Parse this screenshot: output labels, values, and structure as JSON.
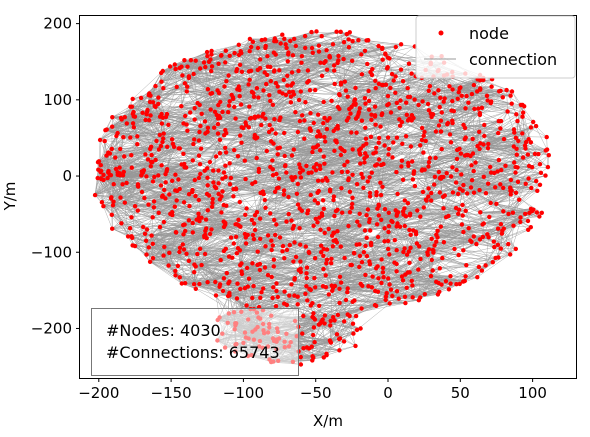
{
  "chart_data": {
    "type": "scatter",
    "title": "",
    "xlabel": "X/m",
    "ylabel": "Y/m",
    "xlim": [
      -213,
      130
    ],
    "ylim": [
      -265,
      210
    ],
    "xticks": [
      -200,
      -150,
      -100,
      -50,
      0,
      50,
      100
    ],
    "yticks": [
      -200,
      -100,
      0,
      100,
      200
    ],
    "xtick_labels": [
      "−200",
      "−150",
      "−100",
      "−50",
      "0",
      "50",
      "100"
    ],
    "ytick_labels": [
      "−200",
      "−100",
      "0",
      "100",
      "200"
    ],
    "grid": false,
    "legend_placement": "top-right",
    "series": [
      {
        "name": "node",
        "color": "#ff0000",
        "marker": "point",
        "count": 4030
      },
      {
        "name": "connection",
        "color": "#999999",
        "marker": "line",
        "count": 65743
      }
    ],
    "extent": {
      "x": [
        -203,
        115
      ],
      "y": [
        -245,
        190
      ]
    },
    "annotation": {
      "lines": [
        "#Nodes: 4030",
        "#Connections: 65743"
      ]
    }
  }
}
